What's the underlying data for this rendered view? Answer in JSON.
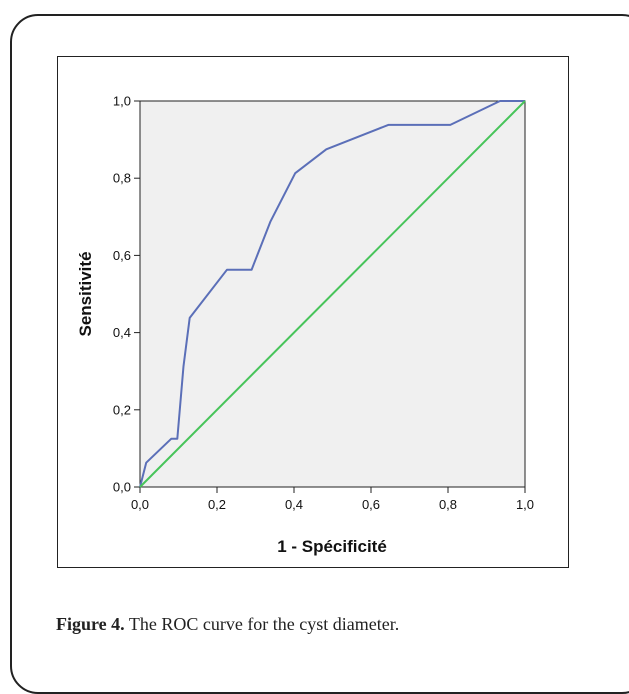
{
  "caption": {
    "label": "Figure 4.",
    "text": " The ROC curve for the cyst diameter."
  },
  "chart_data": {
    "type": "line",
    "xlabel": "1 - Spécificité",
    "ylabel": "Sensitivité",
    "xlim": [
      0,
      1
    ],
    "ylim": [
      0,
      1
    ],
    "xticks": [
      "0,0",
      "0,2",
      "0,4",
      "0,6",
      "0,8",
      "1,0"
    ],
    "yticks": [
      "0,0",
      "0,2",
      "0,4",
      "0,6",
      "0,8",
      "1,0"
    ],
    "grid": false,
    "series": [
      {
        "color": "#5b6fb8",
        "x": [
          0,
          0.016,
          0.081,
          0.097,
          0.113,
          0.129,
          0.226,
          0.29,
          0.339,
          0.403,
          0.484,
          0.645,
          0.806,
          0.935,
          1.0
        ],
        "y": [
          0,
          0.063,
          0.125,
          0.125,
          0.313,
          0.438,
          0.563,
          0.563,
          0.688,
          0.813,
          0.875,
          0.938,
          0.938,
          1.0,
          1.0
        ]
      },
      {
        "color": "#47c45a",
        "x": [
          0,
          1
        ],
        "y": [
          0,
          1
        ]
      }
    ]
  }
}
